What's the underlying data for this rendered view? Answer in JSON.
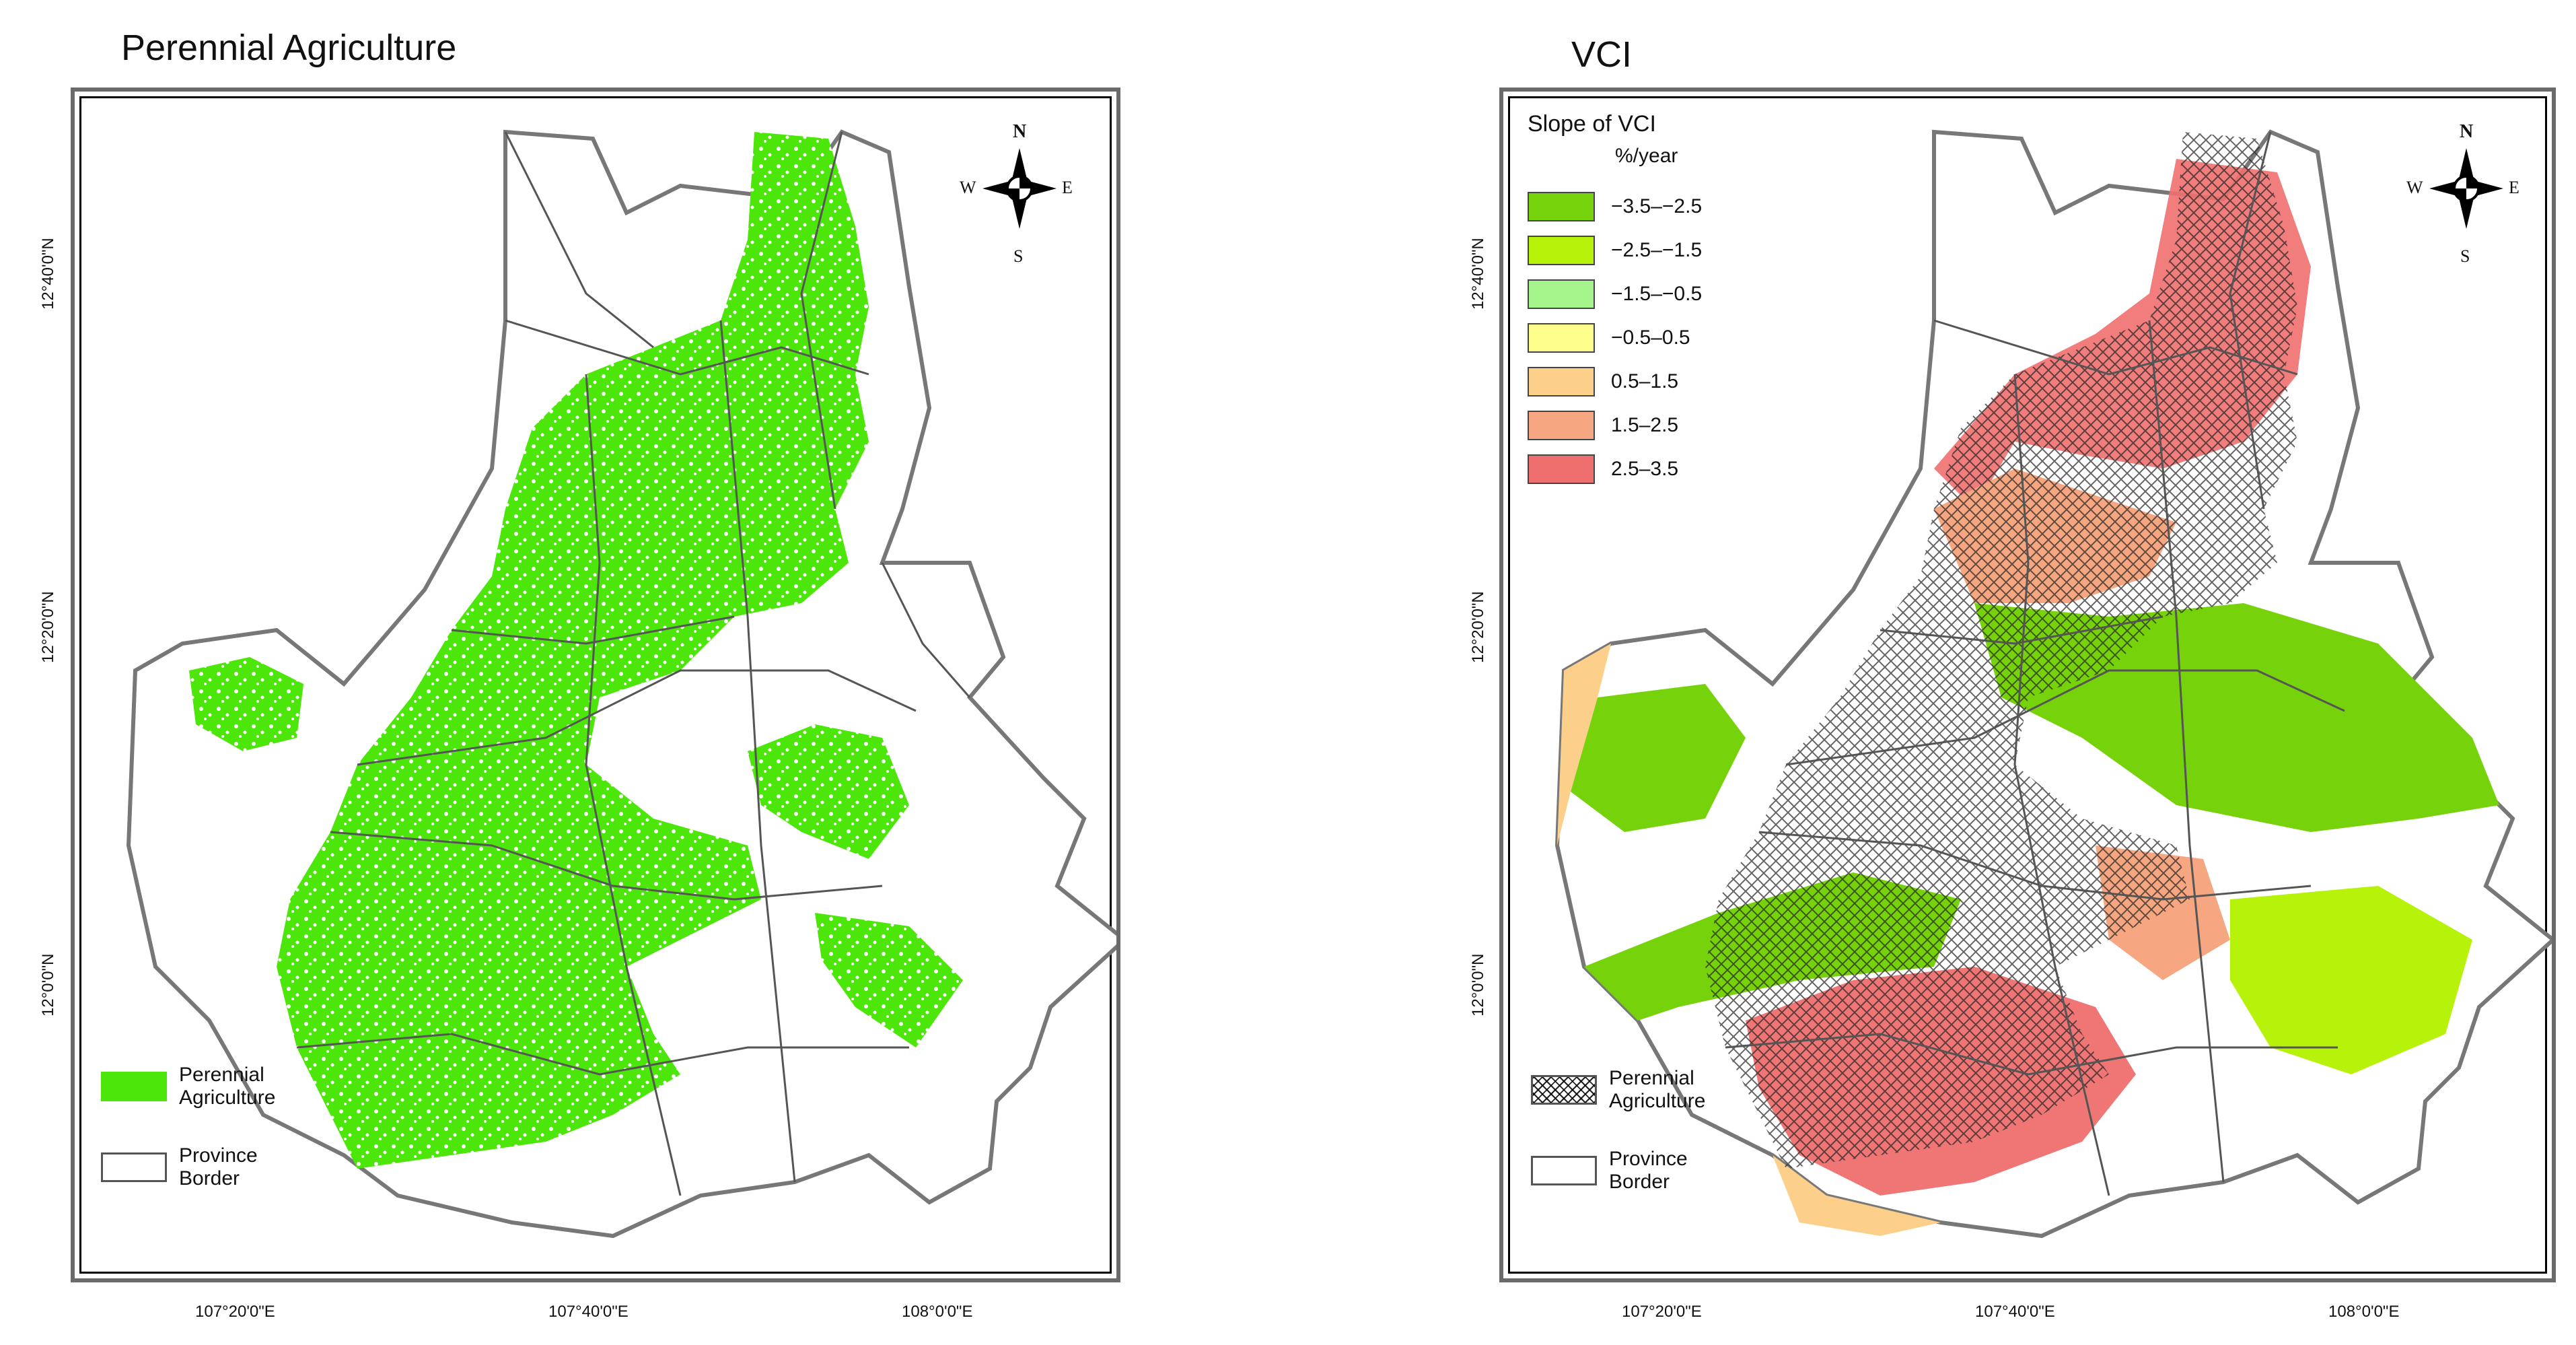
{
  "left_panel": {
    "title": "Perennial Agriculture",
    "lat_labels": [
      "12°40'0\"N",
      "12°20'0\"N",
      "12°0'0\"N"
    ],
    "lon_labels": [
      "107°20'0\"E",
      "107°40'0\"E",
      "108°0'0\"E"
    ],
    "legend": [
      {
        "label_line1": "Perennial",
        "label_line2": "Agriculture",
        "color": "#4de60a"
      },
      {
        "label_line1": "Province",
        "label_line2": "Border",
        "color": "#ffffff"
      }
    ]
  },
  "right_panel": {
    "title": "VCI",
    "lat_labels": [
      "12°40'0\"N",
      "12°20'0\"N",
      "12°0'0\"N"
    ],
    "lon_labels": [
      "107°20'0\"E",
      "107°40'0\"E",
      "108°0'0\"E"
    ],
    "slope_legend": {
      "title": "Slope of VCI",
      "unit": "%/year",
      "classes": [
        {
          "label": "−3.5–−2.5",
          "color": "#76d20a"
        },
        {
          "label": "−2.5–−1.5",
          "color": "#b6f20a"
        },
        {
          "label": "−1.5–−0.5",
          "color": "#a6f58c"
        },
        {
          "label": "−0.5–0.5",
          "color": "#fdfd8c"
        },
        {
          "label": "0.5–1.5",
          "color": "#fcd08a"
        },
        {
          "label": "1.5–2.5",
          "color": "#f6a680"
        },
        {
          "label": "2.5–3.5",
          "color": "#ef6f6f"
        }
      ]
    },
    "legend": [
      {
        "label_line1": "Perennial",
        "label_line2": "Agriculture"
      },
      {
        "label_line1": "Province",
        "label_line2": "Border"
      }
    ]
  },
  "compass": {
    "n": "N",
    "s": "S",
    "e": "E",
    "w": "W"
  }
}
